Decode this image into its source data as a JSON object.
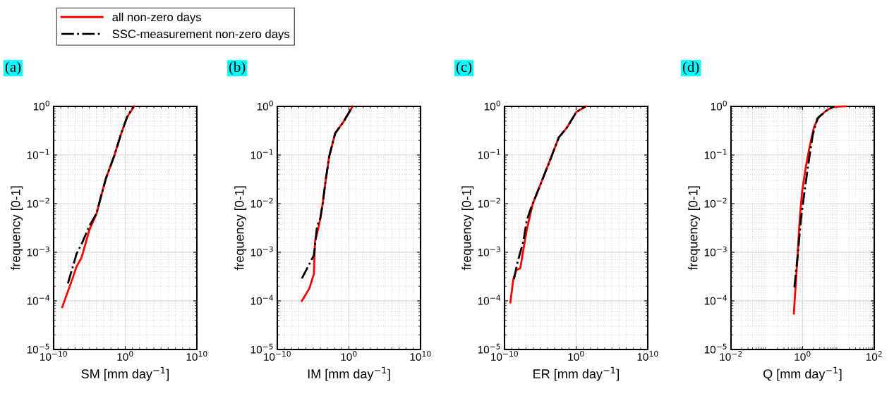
{
  "chart_data": [
    {
      "type": "line",
      "xlabel": "SM [mm day$^{−1}$]",
      "ylabel": "frequency [0-1]",
      "annotations": [
        "(a)"
      ],
      "log": "xy",
      "grid": true,
      "legend": "top",
      "xlim": [
        1e-10,
        10000000000.0
      ],
      "ylim": [
        1e-05,
        1
      ],
      "xticks": [
        {
          "value": 1e-10,
          "label": "10$^{−10}$"
        },
        {
          "value": 1,
          "label": "10$^{0}$"
        },
        {
          "value": 10000000000.0,
          "label": "10$^{10}$"
        }
      ],
      "yticks": [
        {
          "value": 1e-05,
          "label": "10$^{−5}$"
        },
        {
          "value": 0.0001,
          "label": "10$^{−4}$"
        },
        {
          "value": 0.001,
          "label": "10$^{−3}$"
        },
        {
          "value": 0.01,
          "label": "10$^{−2}$"
        },
        {
          "value": 0.1,
          "label": "10$^{−1}$"
        },
        {
          "value": 1,
          "label": "10$^{0}$"
        }
      ],
      "series": [
        {
          "name": "all non-zero days",
          "color": "#ff0000",
          "line_style": "solid",
          "x": [
            1.6e-09,
            5.2e-08,
            1.6e-07,
            7.4e-07,
            1.3e-06,
            1e-05,
            0.0001,
            0.00046,
            0.002,
            0.029,
            0.28,
            1.8,
            18
          ],
          "values": [
            7.4e-05,
            0.00031,
            0.00051,
            0.00076,
            0.001,
            0.0029,
            0.0063,
            0.015,
            0.033,
            0.096,
            0.28,
            0.6,
            1
          ]
        },
        {
          "name": "SSC-measurement non-zero days",
          "color": "#000000",
          "line_style": "dashdot",
          "x": [
            1e-08,
            1.6e-07,
            9.3e-07,
            1e-05,
            0.0001,
            0.00046,
            0.002,
            0.029,
            0.28,
            1.8,
            14
          ],
          "values": [
            0.00023,
            0.00093,
            0.00155,
            0.0035,
            0.0063,
            0.015,
            0.033,
            0.096,
            0.28,
            0.6,
            1
          ]
        }
      ]
    },
    {
      "type": "line",
      "xlabel": "IM [mm day$^{−1}$]",
      "ylabel": "frequency [0-1]",
      "annotations": [
        "(b)"
      ],
      "log": "xy",
      "grid": true,
      "xlim": [
        1e-10,
        10000000000.0
      ],
      "ylim": [
        1e-05,
        1
      ],
      "xticks": [
        {
          "value": 1e-10,
          "label": "10$^{−10}$"
        },
        {
          "value": 1,
          "label": "10$^{0}$"
        },
        {
          "value": 10000000000.0,
          "label": "10$^{10}$"
        }
      ],
      "yticks": [
        {
          "value": 1e-05,
          "label": "10$^{−5}$"
        },
        {
          "value": 0.0001,
          "label": "10$^{−4}$"
        },
        {
          "value": 0.001,
          "label": "10$^{−3}$"
        },
        {
          "value": 0.01,
          "label": "10$^{−2}$"
        },
        {
          "value": 0.1,
          "label": "10$^{−1}$"
        },
        {
          "value": 1,
          "label": "10$^{0}$"
        }
      ],
      "series": [
        {
          "color": "#ff0000",
          "line_style": "solid",
          "x": [
            2.7e-07,
            3e-06,
            1.3e-05,
            1.6e-05,
            1.9e-05,
            4.2e-05,
            8.9e-05,
            0.00022,
            0.00058,
            0.0018,
            0.012,
            0.17,
            3.3
          ],
          "values": [
            0.0001,
            0.00018,
            0.00036,
            0.00093,
            0.0017,
            0.0027,
            0.0045,
            0.0102,
            0.031,
            0.095,
            0.28,
            0.48,
            1
          ]
        },
        {
          "color": "#000000",
          "line_style": "dashdot",
          "x": [
            2.7e-07,
            1.3e-05,
            3.6e-05,
            0.0001,
            0.00022,
            0.00058,
            0.0018,
            0.012,
            0.17,
            3.3
          ],
          "values": [
            0.00029,
            0.00087,
            0.0035,
            0.0049,
            0.0102,
            0.031,
            0.095,
            0.28,
            0.48,
            1
          ]
        }
      ]
    },
    {
      "type": "line",
      "xlabel": "ER [mm day$^{−1}$]",
      "ylabel": "frequency [0-1]",
      "annotations": [
        "(c)"
      ],
      "log": "xy",
      "grid": true,
      "xlim": [
        1e-10,
        10000000000.0
      ],
      "ylim": [
        1e-05,
        1
      ],
      "xticks": [
        {
          "value": 1e-10,
          "label": "10$^{−10}$"
        },
        {
          "value": 1,
          "label": "10$^{0}$"
        },
        {
          "value": 10000000000.0,
          "label": "10$^{10}$"
        }
      ],
      "yticks": [
        {
          "value": 1e-05,
          "label": "10$^{−5}$"
        },
        {
          "value": 0.0001,
          "label": "10$^{−4}$"
        },
        {
          "value": 0.001,
          "label": "10$^{−3}$"
        },
        {
          "value": 0.01,
          "label": "10$^{−2}$"
        },
        {
          "value": 0.1,
          "label": "10$^{−1}$"
        },
        {
          "value": 1,
          "label": "10$^{0}$"
        }
      ],
      "series": [
        {
          "color": "#ff0000",
          "line_style": "solid",
          "x": [
            6.6e-10,
            1.7e-09,
            4.5e-09,
            1.6e-08,
            4.4e-08,
            1.3e-07,
            8.9e-07,
            1.3e-05,
            0.00027,
            0.0038,
            0.054,
            1.1,
            23
          ],
          "values": [
            9.3e-05,
            0.00028,
            0.00043,
            0.00047,
            0.00115,
            0.0029,
            0.01,
            0.027,
            0.083,
            0.23,
            0.37,
            0.77,
            1
          ]
        },
        {
          "color": "#000000",
          "line_style": "dashdot",
          "x": [
            2.1e-09,
            6.5e-09,
            4.4e-08,
            1.3e-07,
            6.2e-07,
            8.9e-07,
            1.3e-05,
            0.00027,
            0.0038,
            0.054,
            1.1,
            20
          ],
          "values": [
            0.00028,
            0.00062,
            0.0017,
            0.0046,
            0.0089,
            0.01,
            0.027,
            0.083,
            0.23,
            0.37,
            0.77,
            1
          ]
        }
      ]
    },
    {
      "type": "line",
      "xlabel": "Q [mm day$^{−1}$]",
      "ylabel": "frequency [0-1]",
      "annotations": [
        "(d)"
      ],
      "log": "xy",
      "grid": true,
      "xlim": [
        0.01,
        100
      ],
      "ylim": [
        1e-05,
        1
      ],
      "xticks": [
        {
          "value": 0.01,
          "label": "10$^{−2}$"
        },
        {
          "value": 1,
          "label": "10$^{0}$"
        },
        {
          "value": 100,
          "label": "10$^{2}$"
        }
      ],
      "yticks": [
        {
          "value": 1e-05,
          "label": "10$^{−5}$"
        },
        {
          "value": 0.0001,
          "label": "10$^{−4}$"
        },
        {
          "value": 0.001,
          "label": "10$^{−3}$"
        },
        {
          "value": 0.01,
          "label": "10$^{−2}$"
        },
        {
          "value": 0.1,
          "label": "10$^{−1}$"
        },
        {
          "value": 1,
          "label": "10$^{0}$"
        }
      ],
      "series": [
        {
          "color": "#ff0000",
          "line_style": "solid",
          "x": [
            0.57,
            0.62,
            0.72,
            0.83,
            0.97,
            1.22,
            1.53,
            2.07,
            2.8,
            4.4,
            6.9,
            15.8
          ],
          "values": [
            5.5e-05,
            0.00015,
            0.00079,
            0.0048,
            0.018,
            0.055,
            0.135,
            0.37,
            0.6,
            0.8,
            0.98,
            1
          ]
        },
        {
          "color": "#000000",
          "line_style": "dashdot",
          "x": [
            0.59,
            0.72,
            0.9,
            1.13,
            1.53,
            1.92,
            2.6,
            4.4,
            7.5
          ],
          "values": [
            0.00019,
            0.00079,
            0.0048,
            0.018,
            0.087,
            0.26,
            0.57,
            0.8,
            1
          ]
        }
      ]
    }
  ]
}
